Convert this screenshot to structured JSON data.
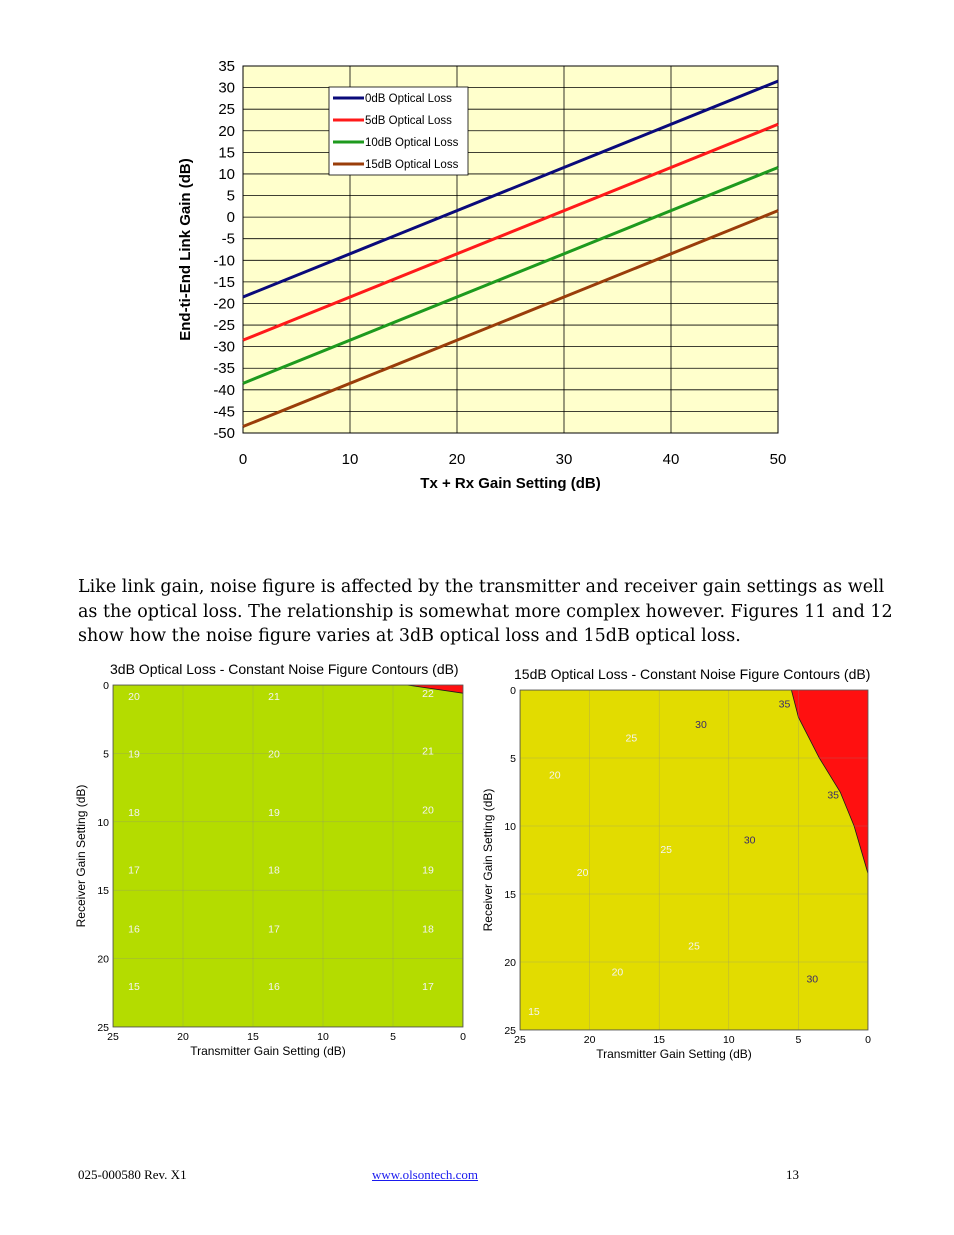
{
  "chart_data": [
    {
      "type": "line",
      "title": "",
      "xlabel": "Tx + Rx Gain Setting (dB)",
      "ylabel": "End-ti-End Link Gain (dB)",
      "xlim": [
        0,
        50
      ],
      "ylim": [
        -50,
        35
      ],
      "x_ticks": [
        0,
        10,
        20,
        30,
        40,
        50
      ],
      "y_ticks": [
        35,
        30,
        25,
        20,
        15,
        10,
        5,
        0,
        -5,
        -10,
        -15,
        -20,
        -25,
        -30,
        -35,
        -40,
        -45,
        -50
      ],
      "grid": true,
      "legend_position": "top-left",
      "plot_background": "#ffffcc",
      "x": [
        0,
        50
      ],
      "series": [
        {
          "name": "0dB Optical Loss",
          "color": "#0a0a7a",
          "values": [
            -18.5,
            31.5
          ]
        },
        {
          "name": "5dB Optical Loss",
          "color": "#ff1a1a",
          "values": [
            -28.5,
            21.5
          ]
        },
        {
          "name": "10dB Optical Loss",
          "color": "#1e9a1e",
          "values": [
            -38.5,
            11.5
          ]
        },
        {
          "name": "15dB Optical Loss",
          "color": "#9a3d0a",
          "values": [
            -48.5,
            1.5
          ]
        }
      ]
    },
    {
      "type": "heatmap",
      "title": "3dB Optical Loss - Constant Noise Figure Contours (dB)",
      "xlabel": "Transmitter Gain Setting (dB)",
      "ylabel": "Receiver Gain Setting (dB)",
      "x_ticks": [
        25,
        20,
        15,
        10,
        5,
        0
      ],
      "y_ticks": [
        0,
        5,
        10,
        15,
        20,
        25
      ],
      "xlim": [
        25,
        0
      ],
      "ylim": [
        0,
        25
      ],
      "contour_levels": [
        15,
        16,
        17,
        18,
        19,
        20,
        21,
        22
      ],
      "level_colors": [
        "#5a0f9a",
        "#000c96",
        "#0a55a6",
        "#009c9e",
        "#00b4a0",
        "#1cc41c",
        "#7cd21c",
        "#b4dc00",
        "#f09000",
        "#ff1010"
      ],
      "labels": [
        {
          "text": "20",
          "x": 23.5,
          "y": 0.8
        },
        {
          "text": "21",
          "x": 13.5,
          "y": 0.8
        },
        {
          "text": "22",
          "x": 2.5,
          "y": 0.6
        },
        {
          "text": "19",
          "x": 23.5,
          "y": 5.0
        },
        {
          "text": "20",
          "x": 13.5,
          "y": 5.0
        },
        {
          "text": "21",
          "x": 2.5,
          "y": 4.8
        },
        {
          "text": "18",
          "x": 23.5,
          "y": 9.3
        },
        {
          "text": "19",
          "x": 13.5,
          "y": 9.3
        },
        {
          "text": "20",
          "x": 2.5,
          "y": 9.1
        },
        {
          "text": "17",
          "x": 23.5,
          "y": 13.5
        },
        {
          "text": "18",
          "x": 13.5,
          "y": 13.5
        },
        {
          "text": "19",
          "x": 2.5,
          "y": 13.5
        },
        {
          "text": "16",
          "x": 23.5,
          "y": 17.8
        },
        {
          "text": "17",
          "x": 13.5,
          "y": 17.8
        },
        {
          "text": "18",
          "x": 2.5,
          "y": 17.8
        },
        {
          "text": "15",
          "x": 23.5,
          "y": 22.0
        },
        {
          "text": "16",
          "x": 13.5,
          "y": 22.0
        },
        {
          "text": "17",
          "x": 2.5,
          "y": 22.0
        }
      ]
    },
    {
      "type": "heatmap",
      "title": "15dB Optical Loss - Constant Noise Figure Contours (dB)",
      "xlabel": "Transmitter Gain Setting (dB)",
      "ylabel": "Receiver Gain Setting (dB)",
      "x_ticks": [
        25,
        20,
        15,
        10,
        5,
        0
      ],
      "y_ticks": [
        0,
        5,
        10,
        15,
        20,
        25
      ],
      "xlim": [
        25,
        0
      ],
      "ylim": [
        0,
        25
      ],
      "contour_levels": [
        15,
        20,
        25,
        30,
        35
      ],
      "level_colors": [
        "#5a0f9a",
        "#0a2a9e",
        "#00b48a",
        "#1cc41c",
        "#e2dc00",
        "#ff1010"
      ],
      "labels": [
        {
          "text": "20",
          "x": 22.5,
          "y": 6.2
        },
        {
          "text": "25",
          "x": 17.0,
          "y": 3.5
        },
        {
          "text": "30",
          "x": 12.0,
          "y": 2.5
        },
        {
          "text": "35",
          "x": 6.0,
          "y": 1.0
        },
        {
          "text": "35",
          "x": 2.5,
          "y": 7.7
        },
        {
          "text": "30",
          "x": 8.5,
          "y": 11.0
        },
        {
          "text": "25",
          "x": 14.5,
          "y": 11.7
        },
        {
          "text": "20",
          "x": 20.5,
          "y": 13.4
        },
        {
          "text": "25",
          "x": 12.5,
          "y": 18.8
        },
        {
          "text": "20",
          "x": 18.0,
          "y": 20.7
        },
        {
          "text": "30",
          "x": 4.0,
          "y": 21.2
        },
        {
          "text": "15",
          "x": 24.0,
          "y": 23.6
        }
      ]
    }
  ],
  "body_text": "Like link gain, noise figure is affected by the transmitter and receiver gain settings as well as the optical loss. The relationship is somewhat more complex however. Figures 11 and 12 show how the noise figure varies at 3dB optical loss and 15dB optical loss.",
  "footer": {
    "doc_number": "025-000580 Rev. X1",
    "link_text": "www.olsontech.com",
    "page_number": "13"
  }
}
